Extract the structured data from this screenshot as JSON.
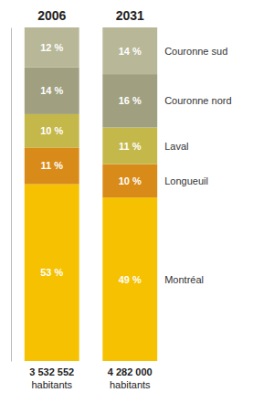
{
  "chart_data": {
    "type": "bar",
    "stacked": true,
    "categories": [
      "2006",
      "2031"
    ],
    "series": [
      {
        "name": "Montréal",
        "color": "#F5C100",
        "values": [
          53,
          49
        ],
        "value_labels": [
          "53 %",
          "49 %"
        ]
      },
      {
        "name": "Longueuil",
        "color": "#D98B1A",
        "values": [
          11,
          10
        ],
        "value_labels": [
          "11 %",
          "10 %"
        ]
      },
      {
        "name": "Laval",
        "color": "#C4B84A",
        "values": [
          10,
          11
        ],
        "value_labels": [
          "10 %",
          "11 %"
        ]
      },
      {
        "name": "Couronne nord",
        "color": "#A0A080",
        "values": [
          14,
          16
        ],
        "value_labels": [
          "14 %",
          "16 %"
        ]
      },
      {
        "name": "Couronne sud",
        "color": "#B8B898",
        "values": [
          12,
          14
        ],
        "value_labels": [
          "12 %",
          "14 %"
        ]
      }
    ],
    "annotations": [
      {
        "lines": [
          "3 532 552",
          "habitants"
        ]
      },
      {
        "lines": [
          "4 282 000",
          "habitants"
        ]
      }
    ],
    "ylim": [
      0,
      100
    ],
    "data_labels": true,
    "tick_labels": false
  }
}
